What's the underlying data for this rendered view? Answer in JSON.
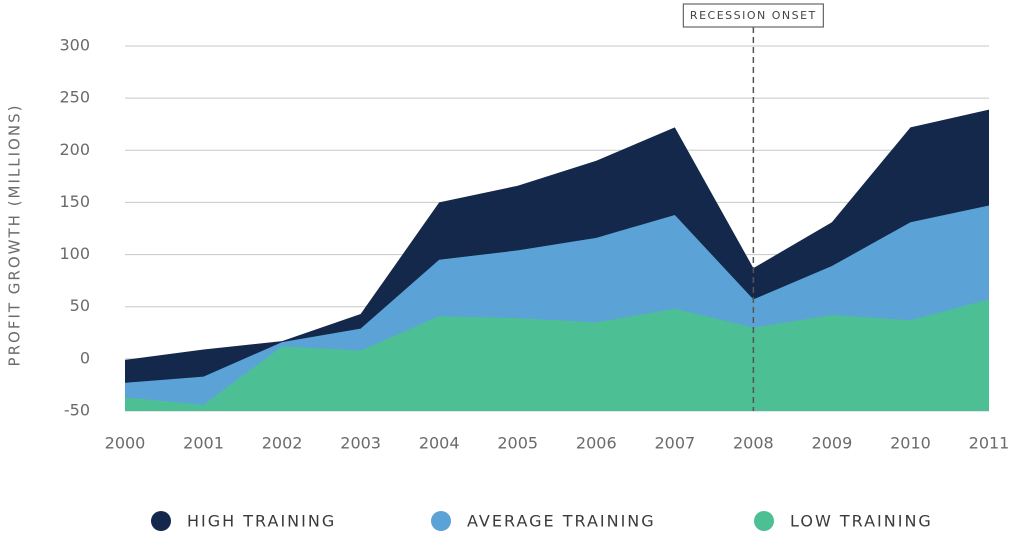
{
  "chart_data": {
    "type": "area",
    "y_axis_label": "PROFIT GROWTH (MILLIONS)",
    "x": [
      2000,
      2001,
      2002,
      2003,
      2004,
      2005,
      2006,
      2007,
      2008,
      2009,
      2010,
      2011
    ],
    "xlim": [
      2000,
      2011
    ],
    "xticks": [
      2000,
      2001,
      2002,
      2003,
      2004,
      2005,
      2006,
      2007,
      2008,
      2009,
      2010,
      2011
    ],
    "ylim": [
      -50,
      300
    ],
    "yticks": [
      -50,
      0,
      50,
      100,
      150,
      200,
      250,
      300
    ],
    "grid": true,
    "legend_position": "bottom",
    "series": [
      {
        "name": "HIGH TRAINING",
        "color": "#14284b",
        "values": [
          -1,
          9,
          17,
          43,
          150,
          166,
          190,
          222,
          87,
          131,
          222,
          239
        ]
      },
      {
        "name": "AVERAGE TRAINING",
        "color": "#5ba3d6",
        "values": [
          -23,
          -17,
          16,
          29,
          95,
          104,
          116,
          138,
          57,
          89,
          131,
          147
        ]
      },
      {
        "name": "LOW TRAINING",
        "color": "#4dbf94",
        "values": [
          -37,
          -44,
          12,
          8,
          41,
          39,
          35,
          48,
          30,
          42,
          37,
          57
        ]
      }
    ],
    "annotations": [
      {
        "text": "RECESSION ONSET",
        "x": 2008
      }
    ]
  }
}
